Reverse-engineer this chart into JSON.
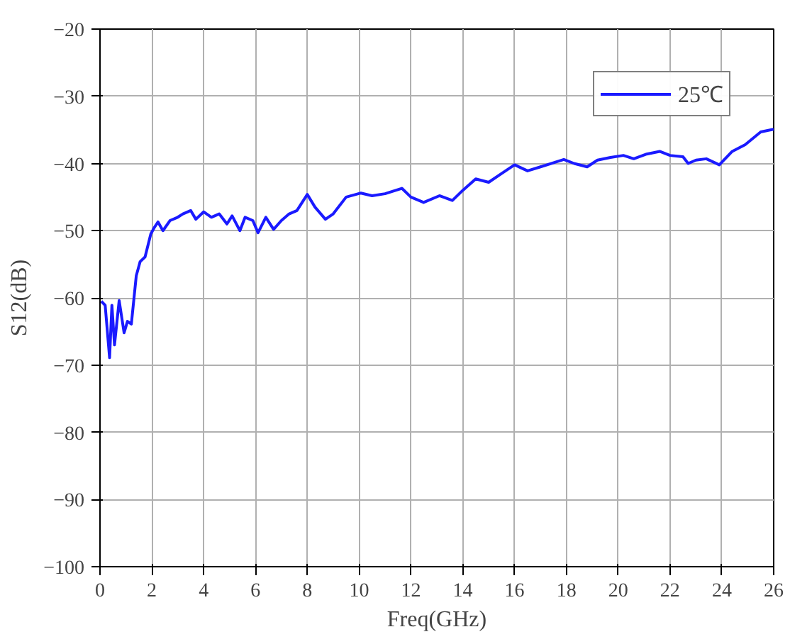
{
  "chart_data": {
    "type": "line",
    "xlabel": "Freq(GHz)",
    "ylabel": "S12(dB)",
    "xlim": [
      0,
      26
    ],
    "ylim": [
      -100,
      -20
    ],
    "xticks": [
      0,
      2,
      4,
      6,
      8,
      10,
      12,
      14,
      16,
      18,
      20,
      22,
      24,
      26
    ],
    "yticks": [
      -100,
      -90,
      -80,
      -70,
      -60,
      -50,
      -40,
      -30,
      -20
    ],
    "grid": true,
    "legend": "top right",
    "line_style": "solid",
    "series": [
      {
        "name": "25℃",
        "color": "#1a1aff",
        "x": [
          0.05,
          0.2,
          0.37,
          0.46,
          0.56,
          0.74,
          0.93,
          1.06,
          1.21,
          1.4,
          1.55,
          1.74,
          1.96,
          2.1,
          2.24,
          2.43,
          2.7,
          3.0,
          3.2,
          3.5,
          3.7,
          4.0,
          4.3,
          4.6,
          4.9,
          5.1,
          5.4,
          5.6,
          5.9,
          6.1,
          6.4,
          6.7,
          7.0,
          7.3,
          7.6,
          8.0,
          8.3,
          8.7,
          9.0,
          9.5,
          10.07,
          10.5,
          11.0,
          11.65,
          12.0,
          12.49,
          13.1,
          13.6,
          14.0,
          14.5,
          15.0,
          15.5,
          16.0,
          16.5,
          17.0,
          17.9,
          18.3,
          18.8,
          19.2,
          19.7,
          20.2,
          20.6,
          21.1,
          21.6,
          22.0,
          22.5,
          22.7,
          23.0,
          23.4,
          23.9,
          24.4,
          24.9,
          25.5,
          26.0
        ],
        "values": [
          -60.5,
          -61.1,
          -68.9,
          -61.1,
          -67.0,
          -60.4,
          -65.2,
          -63.5,
          -63.9,
          -56.7,
          -54.6,
          -53.9,
          -50.5,
          -49.5,
          -48.7,
          -50.0,
          -48.5,
          -48.0,
          -47.5,
          -47.0,
          -48.3,
          -47.2,
          -48.0,
          -47.5,
          -49.0,
          -47.8,
          -50.0,
          -48.0,
          -48.5,
          -50.3,
          -48.0,
          -49.8,
          -48.5,
          -47.5,
          -47.0,
          -44.6,
          -46.5,
          -48.3,
          -47.5,
          -45.0,
          -44.4,
          -44.8,
          -44.5,
          -43.7,
          -45.0,
          -45.8,
          -44.8,
          -45.5,
          -44.0,
          -42.3,
          -42.8,
          -41.5,
          -40.2,
          -41.1,
          -40.5,
          -39.4,
          -40.0,
          -40.5,
          -39.5,
          -39.1,
          -38.8,
          -39.3,
          -38.6,
          -38.2,
          -38.8,
          -39.0,
          -40.0,
          -39.5,
          -39.3,
          -40.2,
          -38.2,
          -37.2,
          -35.3,
          -34.9
        ]
      }
    ]
  }
}
